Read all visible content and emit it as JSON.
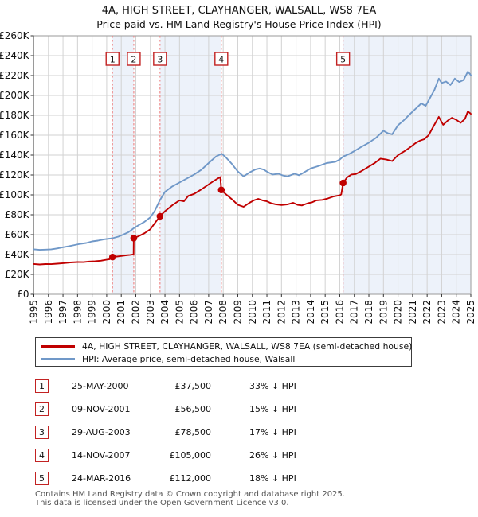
{
  "title": {
    "line1": "4A, HIGH STREET, CLAYHANGER, WALSALL, WS8 7EA",
    "line2": "Price paid vs. HM Land Registry's House Price Index (HPI)"
  },
  "colors": {
    "price_line": "#c00000",
    "hpi_line": "#7098c8",
    "sale_marker": "#c00000",
    "sale_dashed_line": "#ee8a8a",
    "sale_box_border": "#c22222",
    "band_fill": "#edf2fa",
    "grid": "#d2d2d2",
    "plot_border": "#9a9a9a",
    "footer_text": "#555555"
  },
  "chart_data": {
    "type": "line",
    "title": "Price paid vs. HM Land Registry's House Price Index (HPI)",
    "xlabel": "",
    "ylabel": "",
    "xlim": [
      1995,
      2025
    ],
    "ylim": [
      0,
      260000
    ],
    "grid": true,
    "legend_position": "below",
    "x_ticks": [
      1995,
      1996,
      1997,
      1998,
      1999,
      2000,
      2001,
      2002,
      2003,
      2004,
      2005,
      2006,
      2007,
      2008,
      2009,
      2010,
      2011,
      2012,
      2013,
      2014,
      2015,
      2016,
      2017,
      2018,
      2019,
      2020,
      2021,
      2022,
      2023,
      2024,
      2025
    ],
    "y_ticks": [
      {
        "value": 0,
        "label": "£0"
      },
      {
        "value": 20000,
        "label": "£20K"
      },
      {
        "value": 40000,
        "label": "£40K"
      },
      {
        "value": 60000,
        "label": "£60K"
      },
      {
        "value": 80000,
        "label": "£80K"
      },
      {
        "value": 100000,
        "label": "£100K"
      },
      {
        "value": 120000,
        "label": "£120K"
      },
      {
        "value": 140000,
        "label": "£140K"
      },
      {
        "value": 160000,
        "label": "£160K"
      },
      {
        "value": 180000,
        "label": "£180K"
      },
      {
        "value": 200000,
        "label": "£200K"
      },
      {
        "value": 220000,
        "label": "£220K"
      },
      {
        "value": 240000,
        "label": "£240K"
      },
      {
        "value": 260000,
        "label": "£260K"
      }
    ],
    "bands": [
      [
        2000.4,
        2001.86
      ],
      [
        2003.66,
        2007.87
      ],
      [
        2016.23,
        2025
      ]
    ],
    "sales": [
      {
        "n": 1,
        "x": 2000.4,
        "date": "25-MAY-2000",
        "price": 37500
      },
      {
        "n": 2,
        "x": 2001.86,
        "date": "09-NOV-2001",
        "price": 56500
      },
      {
        "n": 3,
        "x": 2003.66,
        "date": "29-AUG-2003",
        "price": 78500
      },
      {
        "n": 4,
        "x": 2007.87,
        "date": "14-NOV-2007",
        "price": 105000
      },
      {
        "n": 5,
        "x": 2016.23,
        "date": "24-MAR-2016",
        "price": 112000
      }
    ],
    "series": [
      {
        "name": "4A, HIGH STREET, CLAYHANGER, WALSALL, WS8 7EA (semi-detached house)",
        "color": "#c00000",
        "points": [
          [
            1995.0,
            30500
          ],
          [
            1995.4,
            30000
          ],
          [
            1995.8,
            30400
          ],
          [
            1996.2,
            30300
          ],
          [
            1996.6,
            30800
          ],
          [
            1997.0,
            31300
          ],
          [
            1997.5,
            32000
          ],
          [
            1998.0,
            32400
          ],
          [
            1998.4,
            32300
          ],
          [
            1998.8,
            33000
          ],
          [
            1999.2,
            33300
          ],
          [
            1999.6,
            33800
          ],
          [
            2000.0,
            34800
          ],
          [
            2000.2,
            35300
          ],
          [
            2000.4,
            37500
          ],
          [
            2000.7,
            38000
          ],
          [
            2001.0,
            38600
          ],
          [
            2001.3,
            39200
          ],
          [
            2001.6,
            39700
          ],
          [
            2001.85,
            40200
          ],
          [
            2001.86,
            56500
          ],
          [
            2002.2,
            58500
          ],
          [
            2002.6,
            61500
          ],
          [
            2003.0,
            65500
          ],
          [
            2003.3,
            71500
          ],
          [
            2003.66,
            78500
          ],
          [
            2004.0,
            83500
          ],
          [
            2004.5,
            89500
          ],
          [
            2005.0,
            94500
          ],
          [
            2005.3,
            93500
          ],
          [
            2005.6,
            99000
          ],
          [
            2006.0,
            101000
          ],
          [
            2006.5,
            105500
          ],
          [
            2007.0,
            110500
          ],
          [
            2007.4,
            114500
          ],
          [
            2007.8,
            117900
          ],
          [
            2007.87,
            105000
          ],
          [
            2008.2,
            100500
          ],
          [
            2008.6,
            95500
          ],
          [
            2009.0,
            90000
          ],
          [
            2009.4,
            88000
          ],
          [
            2009.8,
            92000
          ],
          [
            2010.1,
            94500
          ],
          [
            2010.4,
            96000
          ],
          [
            2010.7,
            94500
          ],
          [
            2011.0,
            93500
          ],
          [
            2011.3,
            91500
          ],
          [
            2011.6,
            90500
          ],
          [
            2012.0,
            89800
          ],
          [
            2012.4,
            90300
          ],
          [
            2012.8,
            92000
          ],
          [
            2013.1,
            90000
          ],
          [
            2013.4,
            89400
          ],
          [
            2013.8,
            91500
          ],
          [
            2014.1,
            92500
          ],
          [
            2014.4,
            94500
          ],
          [
            2014.8,
            95000
          ],
          [
            2015.2,
            96500
          ],
          [
            2015.6,
            98500
          ],
          [
            2016.0,
            99500
          ],
          [
            2016.1,
            100500
          ],
          [
            2016.23,
            112000
          ],
          [
            2016.5,
            117500
          ],
          [
            2016.8,
            120500
          ],
          [
            2017.1,
            121000
          ],
          [
            2017.5,
            124000
          ],
          [
            2018.0,
            128500
          ],
          [
            2018.4,
            132000
          ],
          [
            2018.8,
            136500
          ],
          [
            2019.2,
            135500
          ],
          [
            2019.6,
            134000
          ],
          [
            2020.0,
            140000
          ],
          [
            2020.4,
            143500
          ],
          [
            2020.8,
            147500
          ],
          [
            2021.2,
            152000
          ],
          [
            2021.5,
            154500
          ],
          [
            2021.8,
            156000
          ],
          [
            2022.1,
            160000
          ],
          [
            2022.4,
            168000
          ],
          [
            2022.8,
            178500
          ],
          [
            2023.1,
            170500
          ],
          [
            2023.4,
            174500
          ],
          [
            2023.7,
            177500
          ],
          [
            2024.0,
            175500
          ],
          [
            2024.3,
            172500
          ],
          [
            2024.6,
            176500
          ],
          [
            2024.8,
            184000
          ],
          [
            2025.0,
            181500
          ]
        ]
      },
      {
        "name": "HPI: Average price, semi-detached house, Walsall",
        "color": "#7098c8",
        "points": [
          [
            1995.0,
            45300
          ],
          [
            1995.4,
            44700
          ],
          [
            1995.8,
            45000
          ],
          [
            1996.2,
            45300
          ],
          [
            1996.6,
            46200
          ],
          [
            1997.0,
            47400
          ],
          [
            1997.4,
            48300
          ],
          [
            1997.8,
            49600
          ],
          [
            1998.2,
            50800
          ],
          [
            1998.6,
            51600
          ],
          [
            1999.0,
            53200
          ],
          [
            1999.4,
            54000
          ],
          [
            1999.8,
            55300
          ],
          [
            2000.2,
            56000
          ],
          [
            2000.5,
            56800
          ],
          [
            2000.8,
            58000
          ],
          [
            2001.2,
            60500
          ],
          [
            2001.5,
            62500
          ],
          [
            2001.86,
            66500
          ],
          [
            2002.2,
            69500
          ],
          [
            2002.6,
            73000
          ],
          [
            2003.0,
            77500
          ],
          [
            2003.3,
            84000
          ],
          [
            2003.66,
            94800
          ],
          [
            2004.0,
            103000
          ],
          [
            2004.5,
            108500
          ],
          [
            2005.0,
            112500
          ],
          [
            2005.5,
            116500
          ],
          [
            2006.0,
            120500
          ],
          [
            2006.5,
            125300
          ],
          [
            2007.0,
            132000
          ],
          [
            2007.5,
            138600
          ],
          [
            2007.9,
            141400
          ],
          [
            2008.2,
            137500
          ],
          [
            2008.6,
            131000
          ],
          [
            2009.0,
            123500
          ],
          [
            2009.4,
            118600
          ],
          [
            2009.8,
            122500
          ],
          [
            2010.2,
            125500
          ],
          [
            2010.5,
            126600
          ],
          [
            2010.8,
            125300
          ],
          [
            2011.1,
            122500
          ],
          [
            2011.4,
            120500
          ],
          [
            2011.8,
            121300
          ],
          [
            2012.1,
            119500
          ],
          [
            2012.4,
            118600
          ],
          [
            2012.9,
            121300
          ],
          [
            2013.2,
            119800
          ],
          [
            2013.5,
            122200
          ],
          [
            2014.0,
            126600
          ],
          [
            2014.6,
            129300
          ],
          [
            2015.1,
            132000
          ],
          [
            2015.7,
            133300
          ],
          [
            2016.0,
            135500
          ],
          [
            2016.23,
            138500
          ],
          [
            2016.7,
            141500
          ],
          [
            2017.0,
            144000
          ],
          [
            2017.5,
            148500
          ],
          [
            2018.0,
            152500
          ],
          [
            2018.5,
            157500
          ],
          [
            2019.0,
            164500
          ],
          [
            2019.3,
            162000
          ],
          [
            2019.6,
            161000
          ],
          [
            2020.0,
            170000
          ],
          [
            2020.4,
            175000
          ],
          [
            2020.8,
            181000
          ],
          [
            2021.2,
            186500
          ],
          [
            2021.6,
            192000
          ],
          [
            2021.9,
            189500
          ],
          [
            2022.2,
            197500
          ],
          [
            2022.5,
            205500
          ],
          [
            2022.8,
            217000
          ],
          [
            2023.0,
            212500
          ],
          [
            2023.3,
            214000
          ],
          [
            2023.6,
            210500
          ],
          [
            2023.9,
            217000
          ],
          [
            2024.2,
            213500
          ],
          [
            2024.5,
            215500
          ],
          [
            2024.8,
            224000
          ],
          [
            2025.0,
            220500
          ]
        ]
      }
    ]
  },
  "legend": {
    "items": [
      {
        "label": "4A, HIGH STREET, CLAYHANGER, WALSALL, WS8 7EA (semi-detached house)",
        "color": "#c00000"
      },
      {
        "label": "HPI: Average price, semi-detached house, Walsall",
        "color": "#7098c8"
      }
    ]
  },
  "table": {
    "rows": [
      {
        "num": "1",
        "date": "25-MAY-2000",
        "price": "£37,500",
        "vs_hpi": "33% ↓ HPI"
      },
      {
        "num": "2",
        "date": "09-NOV-2001",
        "price": "£56,500",
        "vs_hpi": "15% ↓ HPI"
      },
      {
        "num": "3",
        "date": "29-AUG-2003",
        "price": "£78,500",
        "vs_hpi": "17% ↓ HPI"
      },
      {
        "num": "4",
        "date": "14-NOV-2007",
        "price": "£105,000",
        "vs_hpi": "26% ↓ HPI"
      },
      {
        "num": "5",
        "date": "24-MAR-2016",
        "price": "£112,000",
        "vs_hpi": "18% ↓ HPI"
      }
    ]
  },
  "footer": {
    "line1": "Contains HM Land Registry data © Crown copyright and database right 2025.",
    "line2": "This data is licensed under the Open Government Licence v3.0."
  }
}
